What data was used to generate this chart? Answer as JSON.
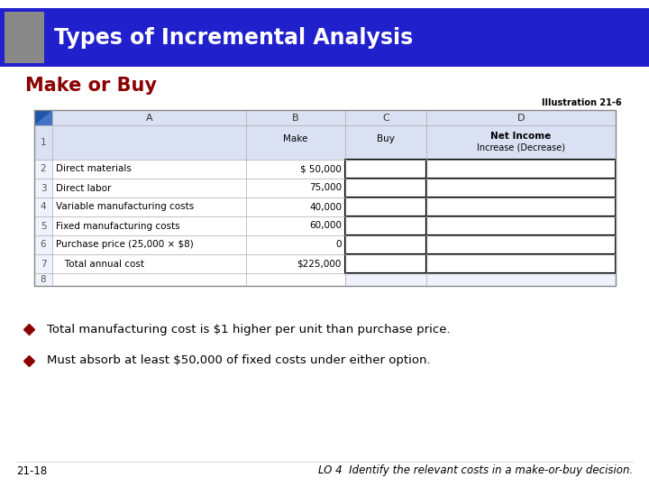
{
  "title": "Types of Incremental Analysis",
  "subtitle": "Make or Buy",
  "illustration_label": "Illustration 21-6",
  "header_bg": "#2020cc",
  "header_text_color": "#ffffff",
  "gray_block_color": "#888888",
  "subtitle_color": "#8B0000",
  "bg_color": "#ffffff",
  "table_header_bg": "#d9e1f2",
  "table_body_bg": "#eef3fb",
  "col_headers": [
    "A",
    "B",
    "C",
    "D"
  ],
  "rows": [
    [
      "2",
      "Direct materials",
      "$ 50,000"
    ],
    [
      "3",
      "Direct labor",
      "75,000"
    ],
    [
      "4",
      "Variable manufacturing costs",
      "40,000"
    ],
    [
      "5",
      "Fixed manufacturing costs",
      "60,000"
    ],
    [
      "6",
      "Purchase price (25,000 × $8)",
      "0"
    ],
    [
      "7",
      "   Total annual cost",
      "$225,000"
    ],
    [
      "8",
      "",
      ""
    ]
  ],
  "bullet_color": "#8B0000",
  "bullets": [
    "Total manufacturing cost is $1 higher per unit than purchase price.",
    "Must absorb at least $50,000 of fixed costs under either option."
  ],
  "footer_left": "21-18",
  "footer_right": "LO 4  Identify the relevant costs in a make-or-buy decision.",
  "footer_color": "#000000"
}
